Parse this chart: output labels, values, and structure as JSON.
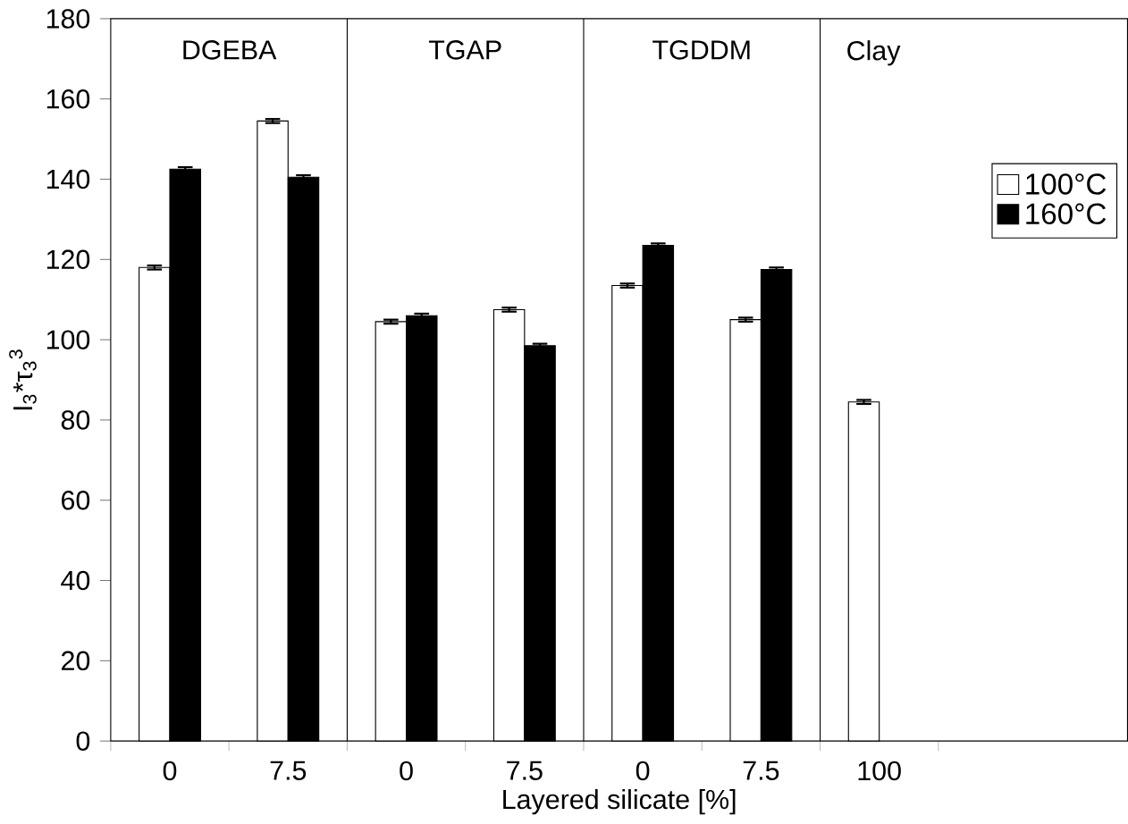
{
  "chart_data": {
    "type": "bar",
    "xlabel": "Layered silicate [%]",
    "ylabel": "I$_{3}$*τ$_{3}$$^{3}$",
    "categories": [
      "0",
      "7.5",
      "0",
      "7.5",
      "0",
      "7.5",
      "100"
    ],
    "series": [
      {
        "name": "100°C",
        "color": "#ffffff",
        "values": [
          118,
          154.5,
          104.5,
          107.5,
          113.5,
          105,
          84.5
        ],
        "errors": [
          0.5,
          0.5,
          0.5,
          0.5,
          0.5,
          0.5,
          0.5
        ]
      },
      {
        "name": "160°C",
        "color": "#000000",
        "values": [
          142.5,
          140.5,
          106,
          98.5,
          123.5,
          117.5,
          null
        ],
        "errors": [
          0.5,
          0.5,
          0.5,
          0.5,
          0.5,
          0.5,
          null
        ]
      }
    ],
    "ylim": [
      0,
      180
    ],
    "yticks": [
      0,
      20,
      40,
      60,
      80,
      100,
      120,
      140,
      160,
      180
    ],
    "annotations": [
      "DGEBA",
      "TGAP",
      "TGDDM",
      "Clay"
    ],
    "legend": "top right"
  }
}
